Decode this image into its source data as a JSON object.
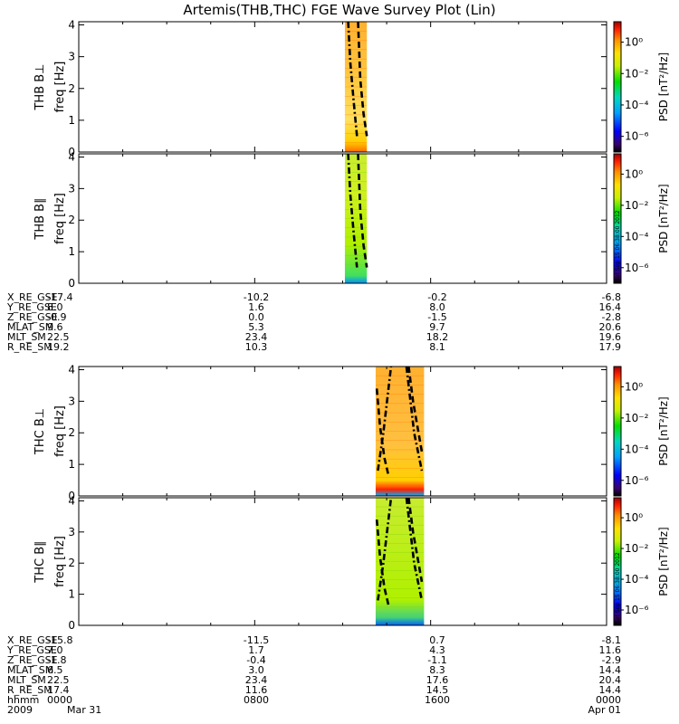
{
  "title": "Artemis(THB,THC) FGE Wave Survey Plot (Lin)",
  "timestamp": "Sat Sep 15 06:38:00 2012",
  "colors": {
    "frame": "#000000",
    "background": "#ffffff",
    "curve": "#000000"
  },
  "colorbar": {
    "label": "PSD [nT²/Hz]",
    "ticks": [
      "10⁰",
      "10⁻²",
      "10⁻⁴",
      "10⁻⁶"
    ],
    "tick_exponents": [
      0,
      -2,
      -4,
      -6
    ],
    "range_log": [
      -7,
      1.3
    ],
    "colormap": "rainbow"
  },
  "chart_data": [
    {
      "type": "heatmap",
      "panel": "THB B⊥",
      "ylabel": "THB B⊥",
      "ylabel2": "freq [Hz]",
      "yticks": [
        "0",
        "1",
        "2",
        "3",
        "4"
      ],
      "ylim": [
        0,
        4.1
      ],
      "xlim_hours": [
        0,
        24
      ],
      "data_span_hours": [
        12.1,
        13.1
      ],
      "curves": [
        {
          "style": "dash-dot",
          "x": [
            12.25,
            12.35,
            12.5,
            12.65
          ],
          "y": [
            4.1,
            2.8,
            1.6,
            0.5
          ]
        },
        {
          "style": "dash",
          "x": [
            12.7,
            12.8,
            12.95,
            13.1
          ],
          "y": [
            4.1,
            2.3,
            1.2,
            0.5
          ]
        }
      ]
    },
    {
      "type": "heatmap",
      "panel": "THB B∥",
      "ylabel": "THB B∥",
      "ylabel2": "freq [Hz]",
      "yticks": [
        "0",
        "1",
        "2",
        "3",
        "4"
      ],
      "ylim": [
        0,
        4.1
      ],
      "xlim_hours": [
        0,
        24
      ],
      "data_span_hours": [
        12.1,
        13.1
      ],
      "curves": [
        {
          "style": "dash-dot",
          "x": [
            12.25,
            12.35,
            12.5,
            12.65
          ],
          "y": [
            4.1,
            2.8,
            1.6,
            0.5
          ]
        },
        {
          "style": "dash",
          "x": [
            12.7,
            12.8,
            12.95,
            13.1
          ],
          "y": [
            4.1,
            2.3,
            1.2,
            0.5
          ]
        }
      ]
    },
    {
      "type": "heatmap",
      "panel": "THC B⊥",
      "ylabel": "THC B⊥",
      "ylabel2": "freq [Hz]",
      "yticks": [
        "0",
        "1",
        "2",
        "3",
        "4"
      ],
      "ylim": [
        0,
        4.1
      ],
      "xlim_hours": [
        0,
        24
      ],
      "data_span_hours": [
        13.5,
        15.7
      ],
      "curves": [
        {
          "style": "dash-dot",
          "x": [
            13.6,
            13.85,
            14.05,
            14.2
          ],
          "y": [
            0.8,
            2.0,
            3.2,
            4.1
          ]
        },
        {
          "style": "dash-dot",
          "x": [
            14.9,
            15.05,
            15.25,
            15.6
          ],
          "y": [
            4.1,
            3.2,
            2.0,
            0.8
          ]
        },
        {
          "style": "dash",
          "x": [
            13.55,
            13.7,
            13.9,
            14.1
          ],
          "y": [
            3.4,
            2.2,
            1.2,
            0.6
          ]
        },
        {
          "style": "dash",
          "x": [
            15.0,
            15.2,
            15.45,
            15.6
          ],
          "y": [
            4.1,
            3.0,
            2.0,
            1.4
          ]
        }
      ]
    },
    {
      "type": "heatmap",
      "panel": "THC B∥",
      "ylabel": "THC B∥",
      "ylabel2": "freq [Hz]",
      "yticks": [
        "0",
        "1",
        "2",
        "3",
        "4"
      ],
      "ylim": [
        0,
        4.1
      ],
      "xlim_hours": [
        0,
        24
      ],
      "data_span_hours": [
        13.5,
        15.7
      ],
      "curves": [
        {
          "style": "dash-dot",
          "x": [
            13.6,
            13.85,
            14.05,
            14.2
          ],
          "y": [
            0.8,
            2.0,
            3.2,
            4.1
          ]
        },
        {
          "style": "dash-dot",
          "x": [
            14.9,
            15.05,
            15.25,
            15.6
          ],
          "y": [
            4.1,
            3.2,
            2.0,
            0.8
          ]
        },
        {
          "style": "dash",
          "x": [
            13.55,
            13.7,
            13.9,
            14.1
          ],
          "y": [
            3.4,
            2.2,
            1.2,
            0.6
          ]
        },
        {
          "style": "dash",
          "x": [
            15.0,
            15.2,
            15.45,
            15.6
          ],
          "y": [
            4.1,
            3.0,
            2.0,
            1.4
          ]
        }
      ]
    }
  ],
  "ephemeris_thb": {
    "rows": [
      {
        "label": "X_RE_GSE",
        "values": [
          "-17.4",
          "-10.2",
          "-0.2",
          "-6.8"
        ]
      },
      {
        "label": "Y_RE_GSE",
        "values": [
          "8.0",
          "1.6",
          "8.0",
          "16.4"
        ]
      },
      {
        "label": "Z_RE_GSE",
        "values": [
          "-0.9",
          "0.0",
          "-1.5",
          "-2.8"
        ]
      },
      {
        "label": "MLAT_SM",
        "values": [
          "9.6",
          "5.3",
          "9.7",
          "20.6"
        ]
      },
      {
        "label": "MLT_SM",
        "values": [
          "22.5",
          "23.4",
          "18.2",
          "19.6"
        ]
      },
      {
        "label": "R_RE_SM",
        "values": [
          "19.2",
          "10.3",
          "8.1",
          "17.9"
        ]
      }
    ]
  },
  "ephemeris_thc": {
    "rows": [
      {
        "label": "X_RE_GSE",
        "values": [
          "-15.8",
          "-11.5",
          "0.7",
          "-8.1"
        ]
      },
      {
        "label": "Y_RE_GSE",
        "values": [
          "7.0",
          "1.7",
          "4.3",
          "11.6"
        ]
      },
      {
        "label": "Z_RE_GSE",
        "values": [
          "-1.8",
          "-0.4",
          "-1.1",
          "-2.9"
        ]
      },
      {
        "label": "MLAT_SM",
        "values": [
          "6.5",
          "3.0",
          "8.3",
          "14.4"
        ]
      },
      {
        "label": "MLT_SM",
        "values": [
          "22.5",
          "23.4",
          "17.6",
          "20.4"
        ]
      },
      {
        "label": "R_RE_SM",
        "values": [
          "17.4",
          "11.6",
          "14.5",
          "14.4"
        ]
      }
    ]
  },
  "time_axis": {
    "hhmm_label": "hhmm",
    "hhmm": [
      "0000",
      "0800",
      "1600",
      "0000"
    ],
    "year": "2009",
    "start_date": "Mar 31",
    "end_date": "Apr 01"
  }
}
